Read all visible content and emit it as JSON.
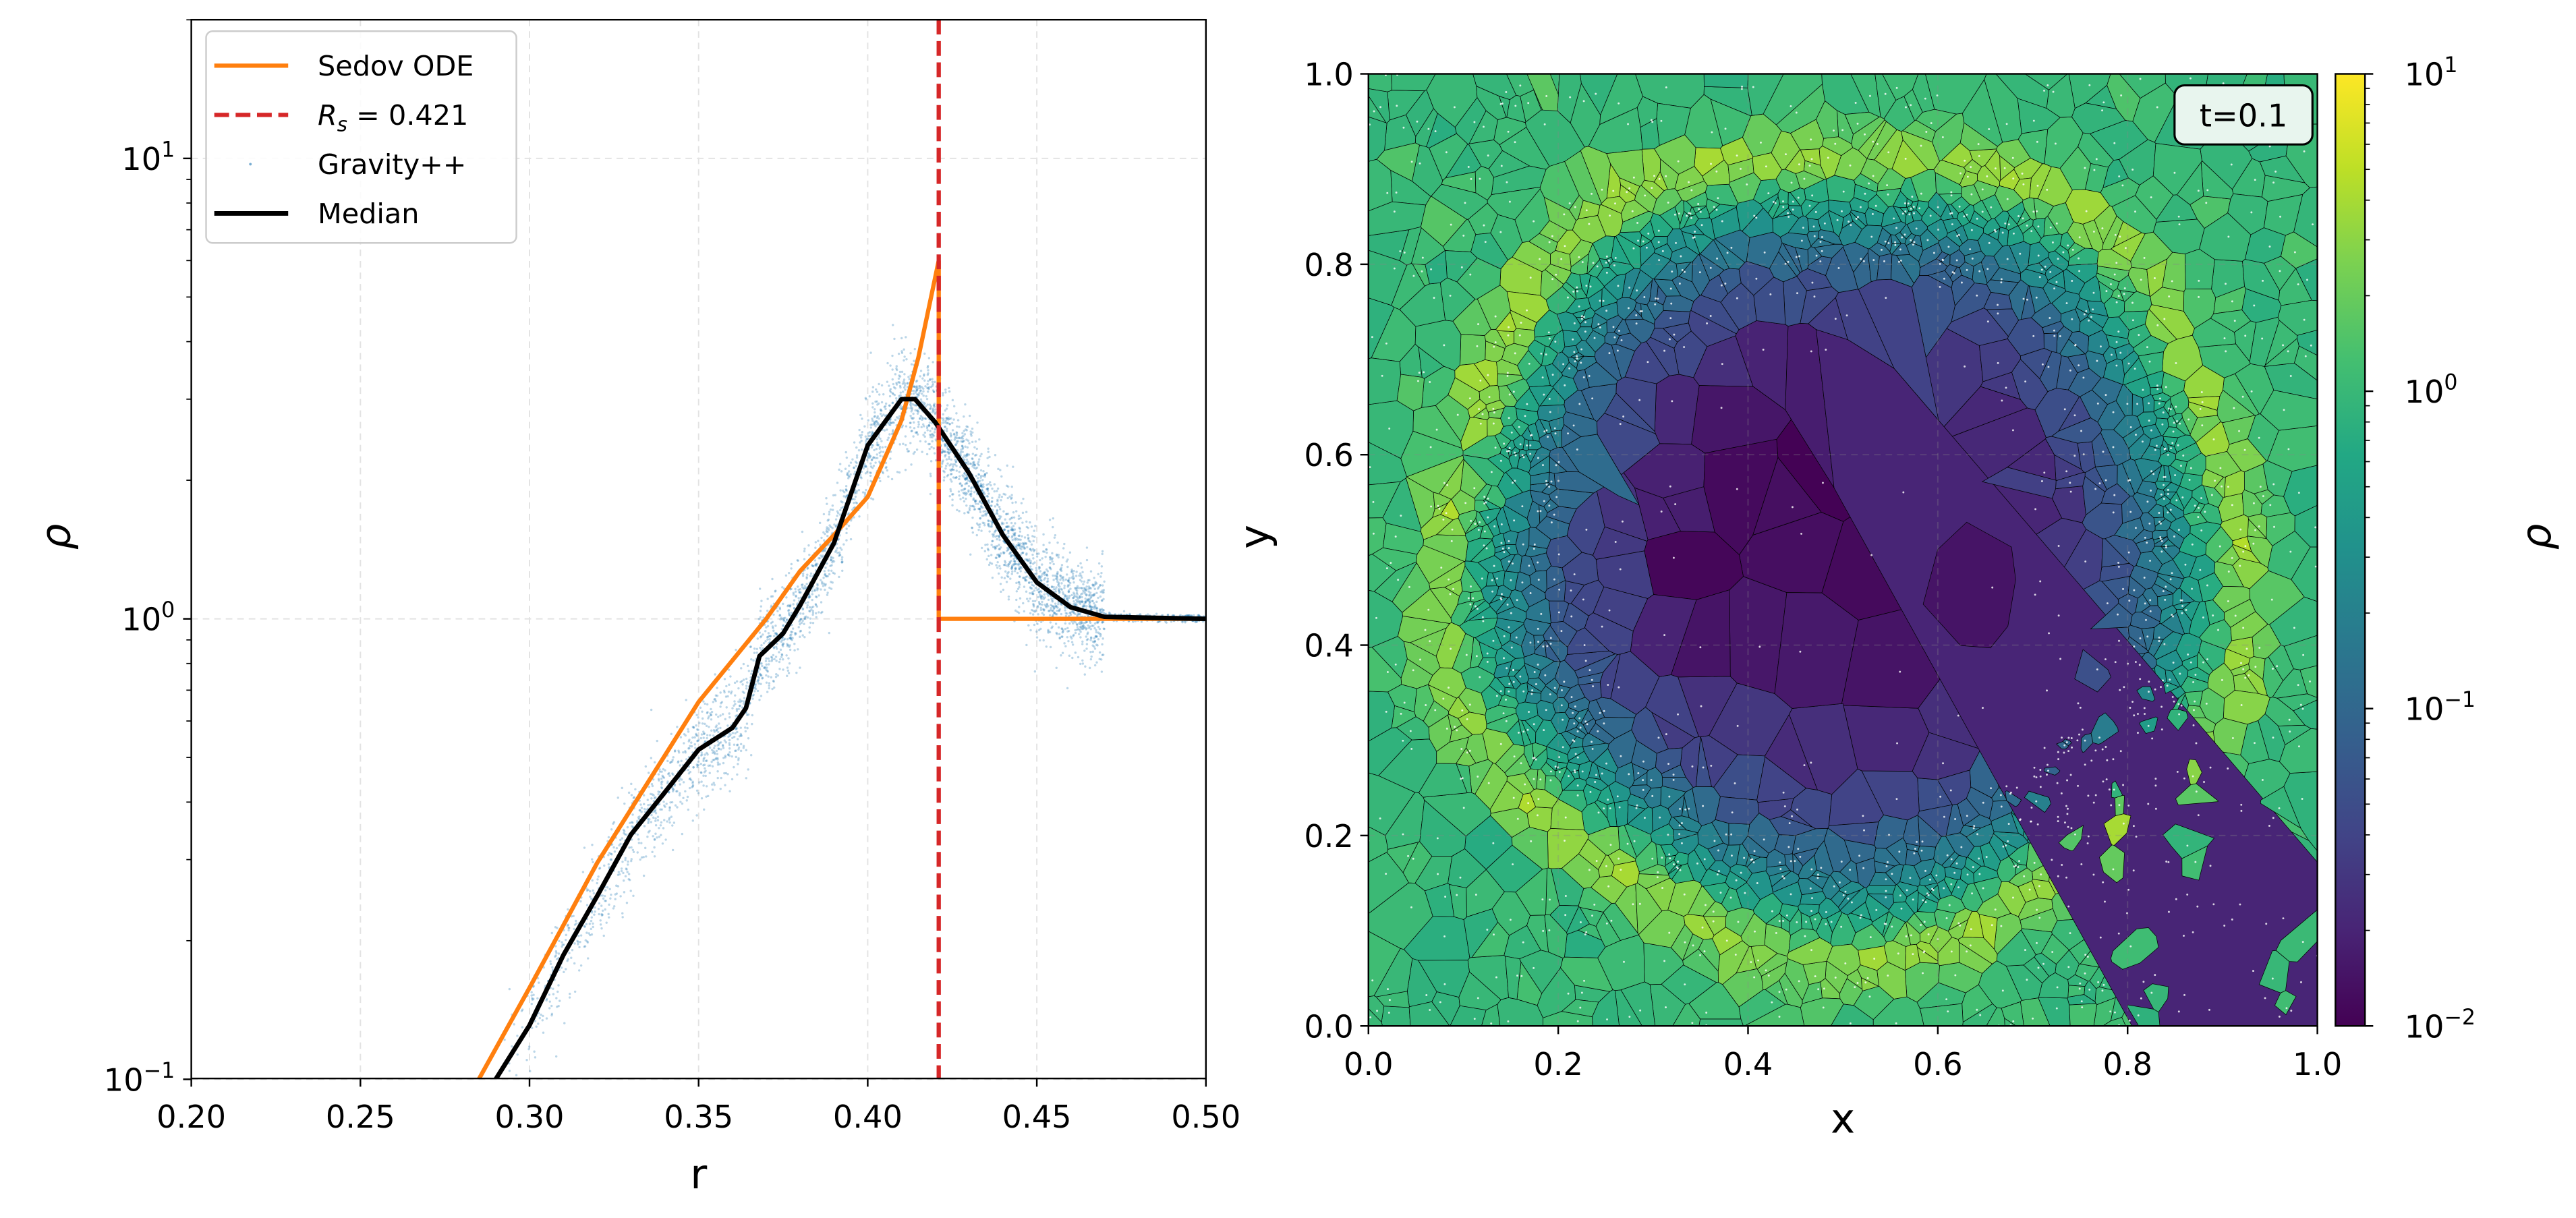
{
  "chart_data": [
    {
      "type": "line",
      "xlabel": "r",
      "ylabel": "ρ",
      "xlim": [
        0.2,
        0.5
      ],
      "ylim": [
        0.1,
        20
      ],
      "yscale": "log",
      "grid": true,
      "xticks": [
        "0.20",
        "0.25",
        "0.30",
        "0.35",
        "0.40",
        "0.45",
        "0.50"
      ],
      "xtick_values": [
        0.2,
        0.25,
        0.3,
        0.35,
        0.4,
        0.45,
        0.5
      ],
      "yticks": [
        {
          "base": "10",
          "exp": "1",
          "value": 10
        },
        {
          "base": "10",
          "exp": "0",
          "value": 1
        },
        {
          "base": "10",
          "exp": "−1",
          "value": 0.1
        }
      ],
      "legend": {
        "placement": "upper-left",
        "entries": [
          {
            "label": "Sedov ODE",
            "style": "solid",
            "color": "#ff7f0e"
          },
          {
            "label_main": "R",
            "label_sub": "s",
            "label_rest": " = 0.421",
            "style": "dashed",
            "color": "#d62728"
          },
          {
            "label": "Gravity++",
            "style": "points",
            "color": "#1f77b4"
          },
          {
            "label": "Median",
            "style": "solid",
            "color": "#000000"
          }
        ]
      },
      "series": [
        {
          "name": "Sedov ODE",
          "color": "#ff7f0e",
          "x": [
            0.285,
            0.3,
            0.32,
            0.35,
            0.37,
            0.38,
            0.39,
            0.4,
            0.41,
            0.415,
            0.421,
            0.421,
            0.5
          ],
          "y": [
            0.1,
            0.158,
            0.295,
            0.66,
            1.0,
            1.27,
            1.52,
            1.84,
            2.7,
            3.7,
            6.0,
            1.0,
            1.0
          ]
        },
        {
          "name": "R_s = 0.421",
          "type": "vline",
          "x": 0.421,
          "color": "#d62728"
        },
        {
          "name": "Gravity++",
          "type": "scatter",
          "color": "#1f77b4"
        },
        {
          "name": "Median",
          "color": "#000000",
          "x": [
            0.29,
            0.3,
            0.31,
            0.32,
            0.33,
            0.34,
            0.35,
            0.36,
            0.364,
            0.368,
            0.375,
            0.38,
            0.39,
            0.4,
            0.41,
            0.414,
            0.42,
            0.43,
            0.44,
            0.45,
            0.46,
            0.47,
            0.5
          ],
          "y": [
            0.1,
            0.131,
            0.186,
            0.25,
            0.34,
            0.42,
            0.52,
            0.58,
            0.64,
            0.83,
            0.93,
            1.07,
            1.46,
            2.38,
            3.0,
            3.0,
            2.67,
            2.07,
            1.52,
            1.2,
            1.06,
            1.01,
            1.0
          ]
        }
      ]
    },
    {
      "type": "heatmap",
      "subtype": "voronoi-mesh",
      "xlabel": "x",
      "ylabel": "y",
      "xlim": [
        0,
        1
      ],
      "ylim": [
        0,
        1
      ],
      "xticks": [
        "0.0",
        "0.2",
        "0.4",
        "0.6",
        "0.8",
        "1.0"
      ],
      "yticks": [
        "0.0",
        "0.2",
        "0.4",
        "0.6",
        "0.8",
        "1.0"
      ],
      "tick_values": [
        0,
        0.2,
        0.4,
        0.6,
        0.8,
        1.0
      ],
      "annotation": "t=0.1",
      "annotation_bg": "#e8f5ee",
      "center": [
        0.5,
        0.5
      ],
      "shock_radius": 0.421,
      "colorbar": {
        "label": "ρ",
        "scale": "log",
        "range": [
          0.01,
          10
        ],
        "colormap": "viridis",
        "ticks": [
          {
            "base": "10",
            "exp": "1",
            "value": 10
          },
          {
            "base": "10",
            "exp": "0",
            "value": 1
          },
          {
            "base": "10",
            "exp": "−1",
            "value": 0.1
          },
          {
            "base": "10",
            "exp": "−2",
            "value": 0.01
          }
        ]
      }
    }
  ]
}
